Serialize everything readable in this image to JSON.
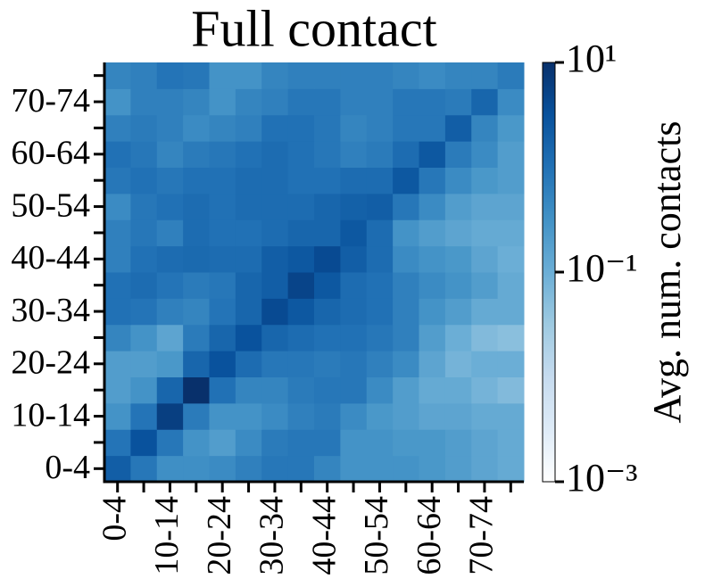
{
  "chart_data": {
    "type": "heatmap",
    "title": "Full contact",
    "categories": [
      "0-4",
      null,
      "10-14",
      null,
      "20-24",
      null,
      "30-34",
      null,
      "40-44",
      null,
      "50-54",
      null,
      "60-64",
      null,
      "70-74",
      null
    ],
    "z": [
      [
        2,
        0.8,
        0.35,
        0.35,
        0.4,
        0.6,
        0.8,
        0.8,
        0.5,
        0.3,
        0.3,
        0.3,
        0.25,
        0.2,
        0.15,
        0.12
      ],
      [
        0.9,
        3,
        0.8,
        0.3,
        0.2,
        0.4,
        0.7,
        0.8,
        0.8,
        0.3,
        0.3,
        0.25,
        0.25,
        0.2,
        0.15,
        0.12
      ],
      [
        0.3,
        0.9,
        6,
        0.7,
        0.3,
        0.3,
        0.4,
        0.6,
        0.7,
        0.4,
        0.25,
        0.2,
        0.15,
        0.15,
        0.12,
        0.12
      ],
      [
        0.2,
        0.3,
        1.5,
        10,
        1,
        0.5,
        0.5,
        0.7,
        0.8,
        0.8,
        0.4,
        0.2,
        0.12,
        0.12,
        0.08,
        0.06
      ],
      [
        0.2,
        0.2,
        0.25,
        1.5,
        3,
        1.2,
        0.8,
        0.8,
        0.7,
        0.8,
        0.6,
        0.4,
        0.15,
        0.08,
        0.1,
        0.1
      ],
      [
        0.5,
        0.3,
        0.15,
        0.7,
        1.5,
        3,
        1.5,
        1.2,
        1,
        1,
        0.8,
        0.6,
        0.2,
        0.1,
        0.06,
        0.05
      ],
      [
        1,
        0.9,
        0.6,
        0.5,
        0.9,
        1.5,
        4,
        2.5,
        1.5,
        1.2,
        1,
        0.6,
        0.3,
        0.2,
        0.12,
        0.12
      ],
      [
        1,
        1.2,
        0.9,
        0.7,
        0.8,
        1.5,
        2,
        5,
        2.5,
        1.2,
        1,
        0.6,
        0.4,
        0.3,
        0.2,
        0.12
      ],
      [
        0.6,
        1,
        1.2,
        1.3,
        1.2,
        1.2,
        2,
        2.5,
        4,
        2,
        1.2,
        0.4,
        0.3,
        0.25,
        0.15,
        0.1
      ],
      [
        0.6,
        0.8,
        0.6,
        1.2,
        1,
        1,
        1.2,
        1.5,
        1.5,
        2.5,
        1.2,
        0.3,
        0.2,
        0.15,
        0.12,
        0.12
      ],
      [
        0.4,
        0.8,
        1,
        1.2,
        1,
        1.2,
        1.2,
        1.2,
        1.5,
        1.8,
        2,
        0.8,
        0.4,
        0.2,
        0.15,
        0.15
      ],
      [
        0.8,
        1,
        0.8,
        1,
        1,
        1.2,
        1.2,
        1,
        1,
        1.2,
        1.2,
        2.5,
        0.8,
        0.4,
        0.25,
        0.2
      ],
      [
        1,
        0.8,
        0.5,
        0.7,
        0.8,
        1,
        1.2,
        1,
        0.8,
        0.6,
        0.7,
        1.2,
        2.5,
        0.7,
        0.4,
        0.2
      ],
      [
        0.6,
        0.7,
        0.6,
        0.4,
        0.5,
        0.6,
        1,
        1,
        0.8,
        0.5,
        0.6,
        0.8,
        0.8,
        2,
        0.5,
        0.25
      ],
      [
        0.3,
        0.6,
        0.6,
        0.5,
        0.3,
        0.5,
        0.6,
        0.8,
        0.8,
        0.6,
        0.6,
        0.8,
        0.8,
        0.7,
        1.5,
        0.4
      ],
      [
        0.5,
        0.6,
        0.9,
        0.8,
        0.3,
        0.3,
        0.5,
        0.6,
        0.6,
        0.6,
        0.6,
        0.5,
        0.4,
        0.5,
        0.5,
        0.7
      ]
    ],
    "colorbar": {
      "label": "Avg. num. contacts",
      "lim": [
        0.001,
        10
      ],
      "log": true,
      "ticks": [
        {
          "value": 0.001,
          "label": "10⁻³"
        },
        {
          "value": 0.1,
          "label": "10⁻¹"
        },
        {
          "value": 10,
          "label": "10¹"
        }
      ]
    }
  }
}
